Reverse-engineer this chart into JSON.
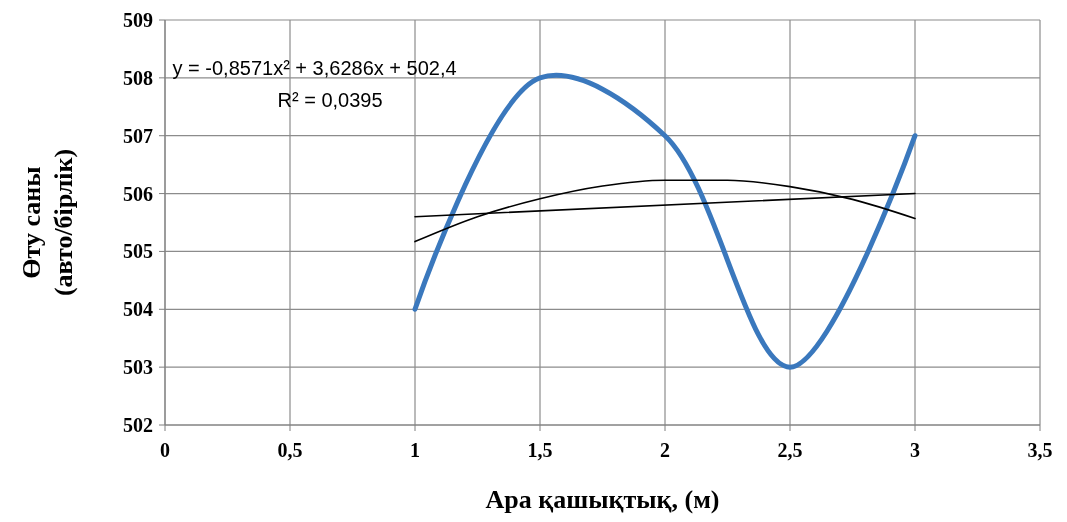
{
  "chart_data": {
    "type": "line",
    "xlabel": "Ара қашықтық, (м)",
    "ylabel": "Өту саны\n(авто/бірлік)",
    "xlim": [
      0,
      3.5
    ],
    "xticks": [
      0,
      {
        "value": 0.5,
        "label": "0,5"
      },
      1,
      {
        "value": 1.5,
        "label": "1,5"
      },
      2,
      {
        "value": 2.5,
        "label": "2,5"
      },
      3,
      {
        "value": 3.5,
        "label": "3,5"
      }
    ],
    "ylim": [
      502,
      509
    ],
    "yticks": [
      502,
      503,
      504,
      505,
      506,
      507,
      508,
      509
    ],
    "grid": true,
    "marker": "none",
    "line_style": "solid",
    "annotations": [
      "y = -0,8571x² + 3,6286x + 502,4",
      "R² = 0,0395"
    ],
    "series": [
      {
        "color": "#3a78bd",
        "x": [
          1,
          1.5,
          2,
          2.5,
          3
        ],
        "values": [
          504,
          508,
          507,
          503,
          507
        ]
      },
      {
        "type": "line",
        "color": "#000000",
        "x": [
          1,
          3
        ],
        "values": [
          505.6,
          506.0
        ]
      },
      {
        "type": "line",
        "color": "#000000",
        "x": [
          1,
          1.25,
          1.5,
          1.75,
          2,
          2.25,
          2.5,
          2.75,
          3
        ],
        "values": [
          505.17,
          505.6,
          505.91,
          506.13,
          506.23,
          506.23,
          506.12,
          505.9,
          505.57
        ]
      }
    ]
  }
}
